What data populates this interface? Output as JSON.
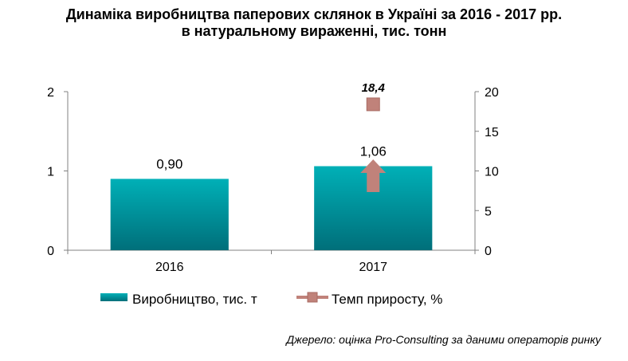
{
  "title": {
    "line1": "Динаміка виробництва паперових склянок в Україні за 2016 - 2017 рр.",
    "line2": "в натуральному вираженні, тис. тонн"
  },
  "source": "Джерело: оцінка Pro-Consulting за даними операторів ринку",
  "colors": {
    "bar_top": "#00b0b7",
    "bar_bottom": "#006f7a",
    "marker": "#c0827a",
    "marker_edge": "#a86a62",
    "axis": "#808080"
  },
  "chart_data": {
    "type": "bar",
    "categories": [
      "2016",
      "2017"
    ],
    "series": [
      {
        "name": "Виробництво, тис. т",
        "type": "bar",
        "axis": "left",
        "values": [
          0.9,
          1.06
        ],
        "labels": [
          "0,90",
          "1,06"
        ]
      },
      {
        "name": "Темп приросту, %",
        "type": "line",
        "axis": "right",
        "values": [
          null,
          18.4
        ],
        "labels": [
          "",
          "18,4"
        ]
      }
    ],
    "left_axis": {
      "min": 0,
      "max": 2,
      "ticks": [
        0,
        1,
        2
      ],
      "tick_labels": [
        "0",
        "1",
        "2"
      ]
    },
    "right_axis": {
      "min": 0,
      "max": 20,
      "ticks": [
        0,
        5,
        10,
        15,
        20
      ],
      "tick_labels": [
        "0",
        "5",
        "10",
        "15",
        "20"
      ]
    },
    "grid": false,
    "legend_position": "bottom",
    "annotation": "growth arrow on 2017 bar"
  }
}
